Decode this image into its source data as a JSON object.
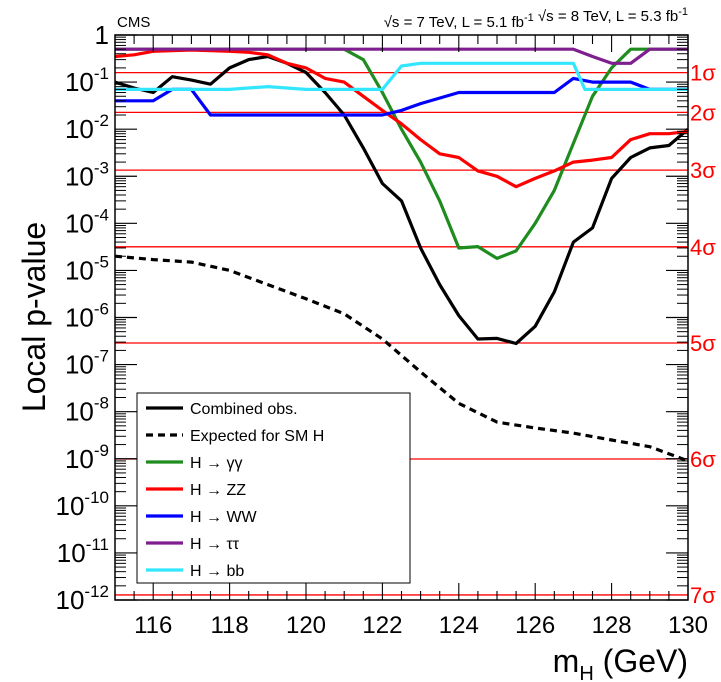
{
  "chart_data": {
    "type": "line",
    "header_left": "CMS",
    "header_right_parts": [
      {
        "text": "√s = 7 TeV, L = 5.1 fb",
        "sup": "-1"
      },
      {
        "text": "  √s = 8 TeV, L = 5.3 fb",
        "sup": "-1"
      }
    ],
    "ylabel": "Local p-value",
    "xlabel": "m",
    "xlabel_sub": "H",
    "xlabel_unit": " (GeV)",
    "xlim": [
      115,
      130
    ],
    "ylim": [
      1e-12,
      1
    ],
    "log_y": true,
    "x_ticks": [
      "116",
      "118",
      "120",
      "122",
      "124",
      "126",
      "128",
      "130"
    ],
    "y_ticks": [
      {
        "text": "1",
        "exp": ""
      },
      {
        "text": "10",
        "exp": "-1"
      },
      {
        "text": "10",
        "exp": "-2"
      },
      {
        "text": "10",
        "exp": "-3"
      },
      {
        "text": "10",
        "exp": "-4"
      },
      {
        "text": "10",
        "exp": "-5"
      },
      {
        "text": "10",
        "exp": "-6"
      },
      {
        "text": "10",
        "exp": "-7"
      },
      {
        "text": "10",
        "exp": "-8"
      },
      {
        "text": "10",
        "exp": "-9"
      },
      {
        "text": "10",
        "exp": "-10"
      },
      {
        "text": "10",
        "exp": "-11"
      },
      {
        "text": "10",
        "exp": "-12"
      }
    ],
    "sigma_lines": [
      {
        "label": "1σ",
        "p": 0.1587
      },
      {
        "label": "2σ",
        "p": 0.02275
      },
      {
        "label": "3σ",
        "p": 0.00135
      },
      {
        "label": "4σ",
        "p": 3.17e-05
      },
      {
        "label": "5σ",
        "p": 2.87e-07
      },
      {
        "label": "6σ",
        "p": 9.87e-10
      },
      {
        "label": "7σ",
        "p": 1.28e-12
      }
    ],
    "sigma_color": "#ff0000",
    "legend_position": "bottom-left",
    "series": [
      {
        "name": "Combined  obs.",
        "color": "#000000",
        "dashed": false,
        "x": [
          115,
          115.5,
          116,
          116.5,
          117,
          117.5,
          118,
          118.5,
          119,
          119.5,
          120,
          120.5,
          121,
          121.5,
          122,
          122.5,
          123,
          123.5,
          124,
          124.5,
          125,
          125.5,
          126,
          126.5,
          127,
          127.5,
          128,
          128.5,
          129,
          129.5,
          130
        ],
        "y": [
          0.1,
          0.075,
          0.06,
          0.13,
          0.11,
          0.09,
          0.2,
          0.3,
          0.35,
          0.25,
          0.16,
          0.06,
          0.02,
          0.004,
          0.0007,
          0.0003,
          3e-05,
          5e-06,
          1.1e-06,
          3.5e-07,
          3.6e-07,
          2.8e-07,
          6.5e-07,
          3.5e-06,
          4e-05,
          8e-05,
          0.0009,
          0.0025,
          0.004,
          0.0045,
          0.01
        ]
      },
      {
        "name": "Expected for SM H",
        "color": "#000000",
        "dashed": true,
        "x": [
          115,
          116,
          117,
          118,
          119,
          120,
          121,
          122,
          123,
          124,
          125,
          126,
          127,
          128,
          129,
          130
        ],
        "y": [
          2e-05,
          1.7e-05,
          1.5e-05,
          1e-05,
          5e-06,
          2.5e-06,
          1.2e-06,
          3.5e-07,
          7e-08,
          1.5e-08,
          6e-09,
          4.5e-09,
          3.5e-09,
          2.5e-09,
          1.8e-09,
          9e-10
        ]
      },
      {
        "name": "H → γγ",
        "color": "#1e8c1e",
        "dashed": false,
        "x": [
          115,
          116,
          117,
          118,
          119,
          120,
          121,
          121.5,
          122,
          122.5,
          123,
          123.5,
          124,
          124.5,
          125,
          125.5,
          126,
          126.5,
          127,
          127.5,
          128,
          128.5,
          129,
          130
        ],
        "y": [
          0.5,
          0.5,
          0.5,
          0.5,
          0.5,
          0.5,
          0.5,
          0.3,
          0.06,
          0.01,
          0.002,
          0.0003,
          3e-05,
          3.2e-05,
          1.8e-05,
          2.6e-05,
          0.0001,
          0.0005,
          0.005,
          0.05,
          0.2,
          0.5,
          0.5,
          0.5
        ]
      },
      {
        "name": "H → ZZ",
        "color": "#ff0000",
        "dashed": false,
        "x": [
          115,
          115.5,
          116,
          117,
          118,
          118.5,
          119,
          119.5,
          120,
          120.5,
          121,
          121.5,
          122,
          122.5,
          123,
          123.5,
          124,
          124.5,
          125,
          125.5,
          126,
          126.5,
          127,
          127.5,
          128,
          128.5,
          129,
          129.5,
          130
        ],
        "y": [
          0.35,
          0.38,
          0.45,
          0.48,
          0.45,
          0.43,
          0.38,
          0.25,
          0.2,
          0.12,
          0.1,
          0.05,
          0.025,
          0.013,
          0.006,
          0.003,
          0.0025,
          0.0013,
          0.001,
          0.0006,
          0.0009,
          0.0013,
          0.002,
          0.0022,
          0.0025,
          0.006,
          0.008,
          0.008,
          0.009
        ]
      },
      {
        "name": "H → WW",
        "color": "#0000ff",
        "dashed": false,
        "x": [
          115,
          116,
          116.5,
          117,
          117.5,
          118,
          119,
          120,
          121,
          122,
          122.5,
          123,
          124,
          125,
          126,
          126.5,
          127,
          127.5,
          128,
          128.5,
          129,
          130
        ],
        "y": [
          0.04,
          0.04,
          0.07,
          0.07,
          0.02,
          0.02,
          0.02,
          0.02,
          0.02,
          0.02,
          0.025,
          0.035,
          0.06,
          0.06,
          0.06,
          0.06,
          0.12,
          0.1,
          0.1,
          0.1,
          0.07,
          0.07
        ]
      },
      {
        "name": "H → ττ",
        "color": "#7f1f8f",
        "dashed": false,
        "x": [
          115,
          116,
          117,
          118,
          119,
          120,
          121,
          122,
          123,
          124,
          125,
          126,
          127,
          127.5,
          128,
          128.5,
          129,
          129.5,
          130
        ],
        "y": [
          0.5,
          0.5,
          0.5,
          0.5,
          0.5,
          0.5,
          0.5,
          0.5,
          0.5,
          0.5,
          0.5,
          0.5,
          0.5,
          0.35,
          0.25,
          0.25,
          0.5,
          0.5,
          0.5
        ]
      },
      {
        "name": "H → bb",
        "color": "#33e6ff",
        "dashed": false,
        "x": [
          115,
          116,
          117,
          118,
          119,
          120,
          121,
          122,
          122.5,
          123,
          124,
          125,
          126,
          127,
          127.3,
          128,
          129,
          130
        ],
        "y": [
          0.07,
          0.07,
          0.07,
          0.07,
          0.08,
          0.07,
          0.07,
          0.07,
          0.22,
          0.25,
          0.25,
          0.25,
          0.25,
          0.25,
          0.07,
          0.07,
          0.07,
          0.07
        ]
      }
    ]
  }
}
